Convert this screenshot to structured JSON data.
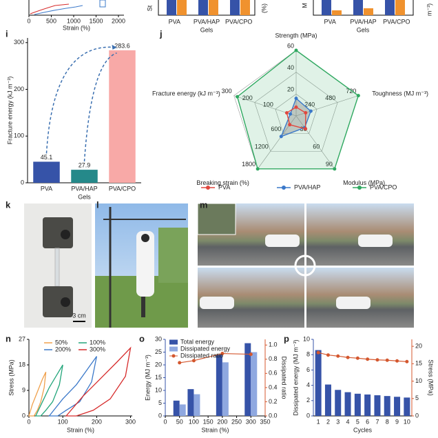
{
  "top_strip": {
    "left": {
      "xticks": [
        0,
        500,
        1000,
        1500,
        2000
      ],
      "xlabel": "Strain (%)"
    },
    "middle": {
      "categories": [
        "PVA",
        "PVA/HAP",
        "PVA/CPO"
      ],
      "xlabel": "Gels",
      "ylabel_fragment": "St",
      "y2label_fragment": "(%)"
    },
    "right": {
      "categories": [
        "PVA",
        "PVA/HAP",
        "PVA/CPO"
      ],
      "xlabel": "Gels",
      "ylabel_fragment": "M",
      "y2label_fragment": "m⁻³)"
    }
  },
  "photos": {
    "k": "k",
    "l": "l",
    "m": "m",
    "scale_bar": "3 cm"
  },
  "chart_data": [
    {
      "type": "bar",
      "label": "i",
      "categories": [
        "PVA",
        "PVA/HAP",
        "PVA/CPO"
      ],
      "values": [
        45.1,
        27.9,
        283.6
      ],
      "colors": [
        "#3653a8",
        "#25898a",
        "#f8a9a7"
      ],
      "ylim": [
        0,
        310
      ],
      "yticks": [
        0,
        100,
        200,
        300
      ],
      "xlabel": "Gels",
      "ylabel": "Fracture energy (kJ m⁻³)"
    },
    {
      "type": "radar",
      "label": "j",
      "axes": [
        {
          "name": "Strength (MPa)",
          "lim": [
            0,
            60
          ],
          "ticks": [
            20,
            40,
            60
          ]
        },
        {
          "name": "Toughness (MJ m⁻³)",
          "lim": [
            0,
            720
          ],
          "ticks": [
            240,
            480,
            720
          ]
        },
        {
          "name": "Modulus (MPa)",
          "lim": [
            0,
            90
          ],
          "ticks": [
            30,
            60,
            90
          ]
        },
        {
          "name": "Breaking strain (%)",
          "lim": [
            0,
            1800
          ],
          "ticks": [
            600,
            1200,
            1800
          ]
        },
        {
          "name": "Fracture energy (kJ m⁻³)",
          "lim": [
            0,
            300
          ],
          "ticks": [
            100,
            200,
            300
          ]
        }
      ],
      "series": [
        {
          "name": "PVA",
          "color": "#e0473e",
          "values": [
            8,
            110,
            22,
            300,
            45.1
          ]
        },
        {
          "name": "PVA/HAP",
          "color": "#3a78c9",
          "values": [
            16,
            170,
            20,
            700,
            27.9
          ]
        },
        {
          "name": "PVA/CPO",
          "color": "#2fa860",
          "values": [
            60,
            720,
            90,
            1800,
            283.6
          ]
        }
      ]
    },
    {
      "type": "line",
      "label": "n",
      "xlim": [
        0,
        305
      ],
      "xticks": [
        0,
        100,
        200,
        300
      ],
      "ylim": [
        0,
        27
      ],
      "yticks": [
        0,
        9,
        18,
        27
      ],
      "xlabel": "Strain (%)",
      "ylabel": "Stress (MPa)",
      "series": [
        {
          "name": "50%",
          "color": "#f0a04b",
          "x": [
            0,
            10,
            20,
            30,
            40,
            50,
            45,
            35,
            25,
            15
          ],
          "values": [
            0,
            4,
            7,
            10,
            13,
            15.5,
            10,
            5,
            2,
            0
          ]
        },
        {
          "name": "100%",
          "color": "#22a57a",
          "x": [
            20,
            40,
            60,
            80,
            100,
            90,
            70,
            50,
            35
          ],
          "values": [
            0,
            5,
            10,
            14,
            18,
            11,
            5,
            2,
            0
          ]
        },
        {
          "name": "200%",
          "color": "#3a78c9",
          "x": [
            60,
            100,
            140,
            170,
            200,
            185,
            150,
            110,
            85
          ],
          "values": [
            0,
            6,
            11,
            16,
            21,
            12,
            5,
            2,
            0
          ]
        },
        {
          "name": "300%",
          "color": "#d62a2a",
          "x": [
            110,
            160,
            210,
            260,
            300,
            285,
            240,
            190,
            140
          ],
          "values": [
            0,
            7,
            13,
            19,
            24,
            14,
            6,
            2,
            0
          ]
        }
      ]
    },
    {
      "type": "bar",
      "label": "o",
      "x": [
        50,
        100,
        200,
        300
      ],
      "xlim": [
        0,
        350
      ],
      "xticks": [
        0,
        50,
        100,
        150,
        200,
        250,
        300,
        350
      ],
      "ylim": [
        0,
        30
      ],
      "yticks": [
        0,
        5,
        10,
        15,
        20,
        25,
        30
      ],
      "y2lim": [
        0,
        1.08
      ],
      "y2ticks": [
        {
          "value": 0,
          "label": "0.0"
        },
        {
          "value": 0.2,
          "label": "0.2"
        },
        {
          "value": 0.4,
          "label": "0.4"
        },
        {
          "value": 0.6,
          "label": "0.6"
        },
        {
          "value": 0.8,
          "label": "0.8"
        },
        {
          "value": 1,
          "label": "1.0"
        }
      ],
      "xlabel": "Strain (%)",
      "ylabel": "Energy (MJ m⁻³)",
      "y2label": "Dissipated ratio",
      "ycolor": "#3653a8",
      "y2color": "#d4572e",
      "legend": true,
      "series": [
        {
          "name": "Total energy",
          "color": "#3653a8",
          "values": [
            6,
            10.5,
            24,
            28.5
          ]
        },
        {
          "name": "Dissipated energy",
          "color": "#8fa8e0",
          "values": [
            4.5,
            8.5,
            21,
            25
          ]
        },
        {
          "name": "Dissipated ratio",
          "color": "#d4572e",
          "axis": "y2",
          "values": [
            0.75,
            0.78,
            0.88,
            0.87
          ]
        }
      ]
    },
    {
      "type": "bar",
      "label": "p",
      "categories": [
        "1",
        "2",
        "3",
        "4",
        "5",
        "6",
        "7",
        "8",
        "9",
        "10"
      ],
      "ylim": [
        0,
        10
      ],
      "yticks": [
        0,
        2,
        4,
        6,
        8,
        10
      ],
      "y2lim": [
        0,
        22
      ],
      "y2ticks": [
        0,
        5,
        10,
        15,
        20
      ],
      "xlabel": "Cycles",
      "ylabel": "Dissipated energy (MJ m⁻³)",
      "y2label": "Stress (MPa)",
      "ycolor": "#3653a8",
      "y2color": "#d4572e",
      "legend": false,
      "series": [
        {
          "name": "Dissipated energy",
          "color": "#3653a8",
          "values": [
            8.6,
            4.1,
            3.4,
            3.1,
            2.9,
            2.8,
            2.7,
            2.6,
            2.5,
            2.4
          ]
        },
        {
          "name": "Stress",
          "color": "#d4572e",
          "axis": "y2",
          "values": [
            18.2,
            17.5,
            17.2,
            16.8,
            16.6,
            16.3,
            16.1,
            16.0,
            15.8,
            15.6
          ]
        }
      ]
    }
  ]
}
